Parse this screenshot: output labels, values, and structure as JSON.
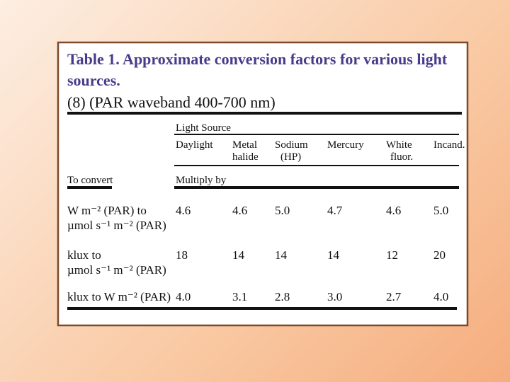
{
  "title": {
    "lines": [
      "Table 1. Approximate conversion factors for various light",
      "sources."
    ],
    "source_note": "(8) (PAR waveband 400-700 nm)"
  },
  "table": {
    "group_header": "Light Source",
    "columns": [
      [
        "Daylight"
      ],
      [
        "Metal",
        "halide"
      ],
      [
        "Sodium",
        "(HP)"
      ],
      [
        "Mercury"
      ],
      [
        "White",
        "fluor."
      ],
      [
        "Incand."
      ]
    ],
    "row_header": "To convert",
    "unit_header": "Multiply by",
    "rows": [
      {
        "label": [
          "W m⁻² (PAR) to",
          "µmol s⁻¹ m⁻² (PAR)"
        ],
        "values": [
          "4.6",
          "4.6",
          "5.0",
          "4.7",
          "4.6",
          "5.0"
        ]
      },
      {
        "label": [
          "klux to",
          "µmol s⁻¹ m⁻² (PAR)"
        ],
        "values": [
          "18",
          "14",
          "14",
          "14",
          "12",
          "20"
        ]
      },
      {
        "label": [
          "klux to W m⁻² (PAR)"
        ],
        "values": [
          "4.0",
          "3.1",
          "2.8",
          "3.0",
          "2.7",
          "4.0"
        ]
      }
    ]
  }
}
